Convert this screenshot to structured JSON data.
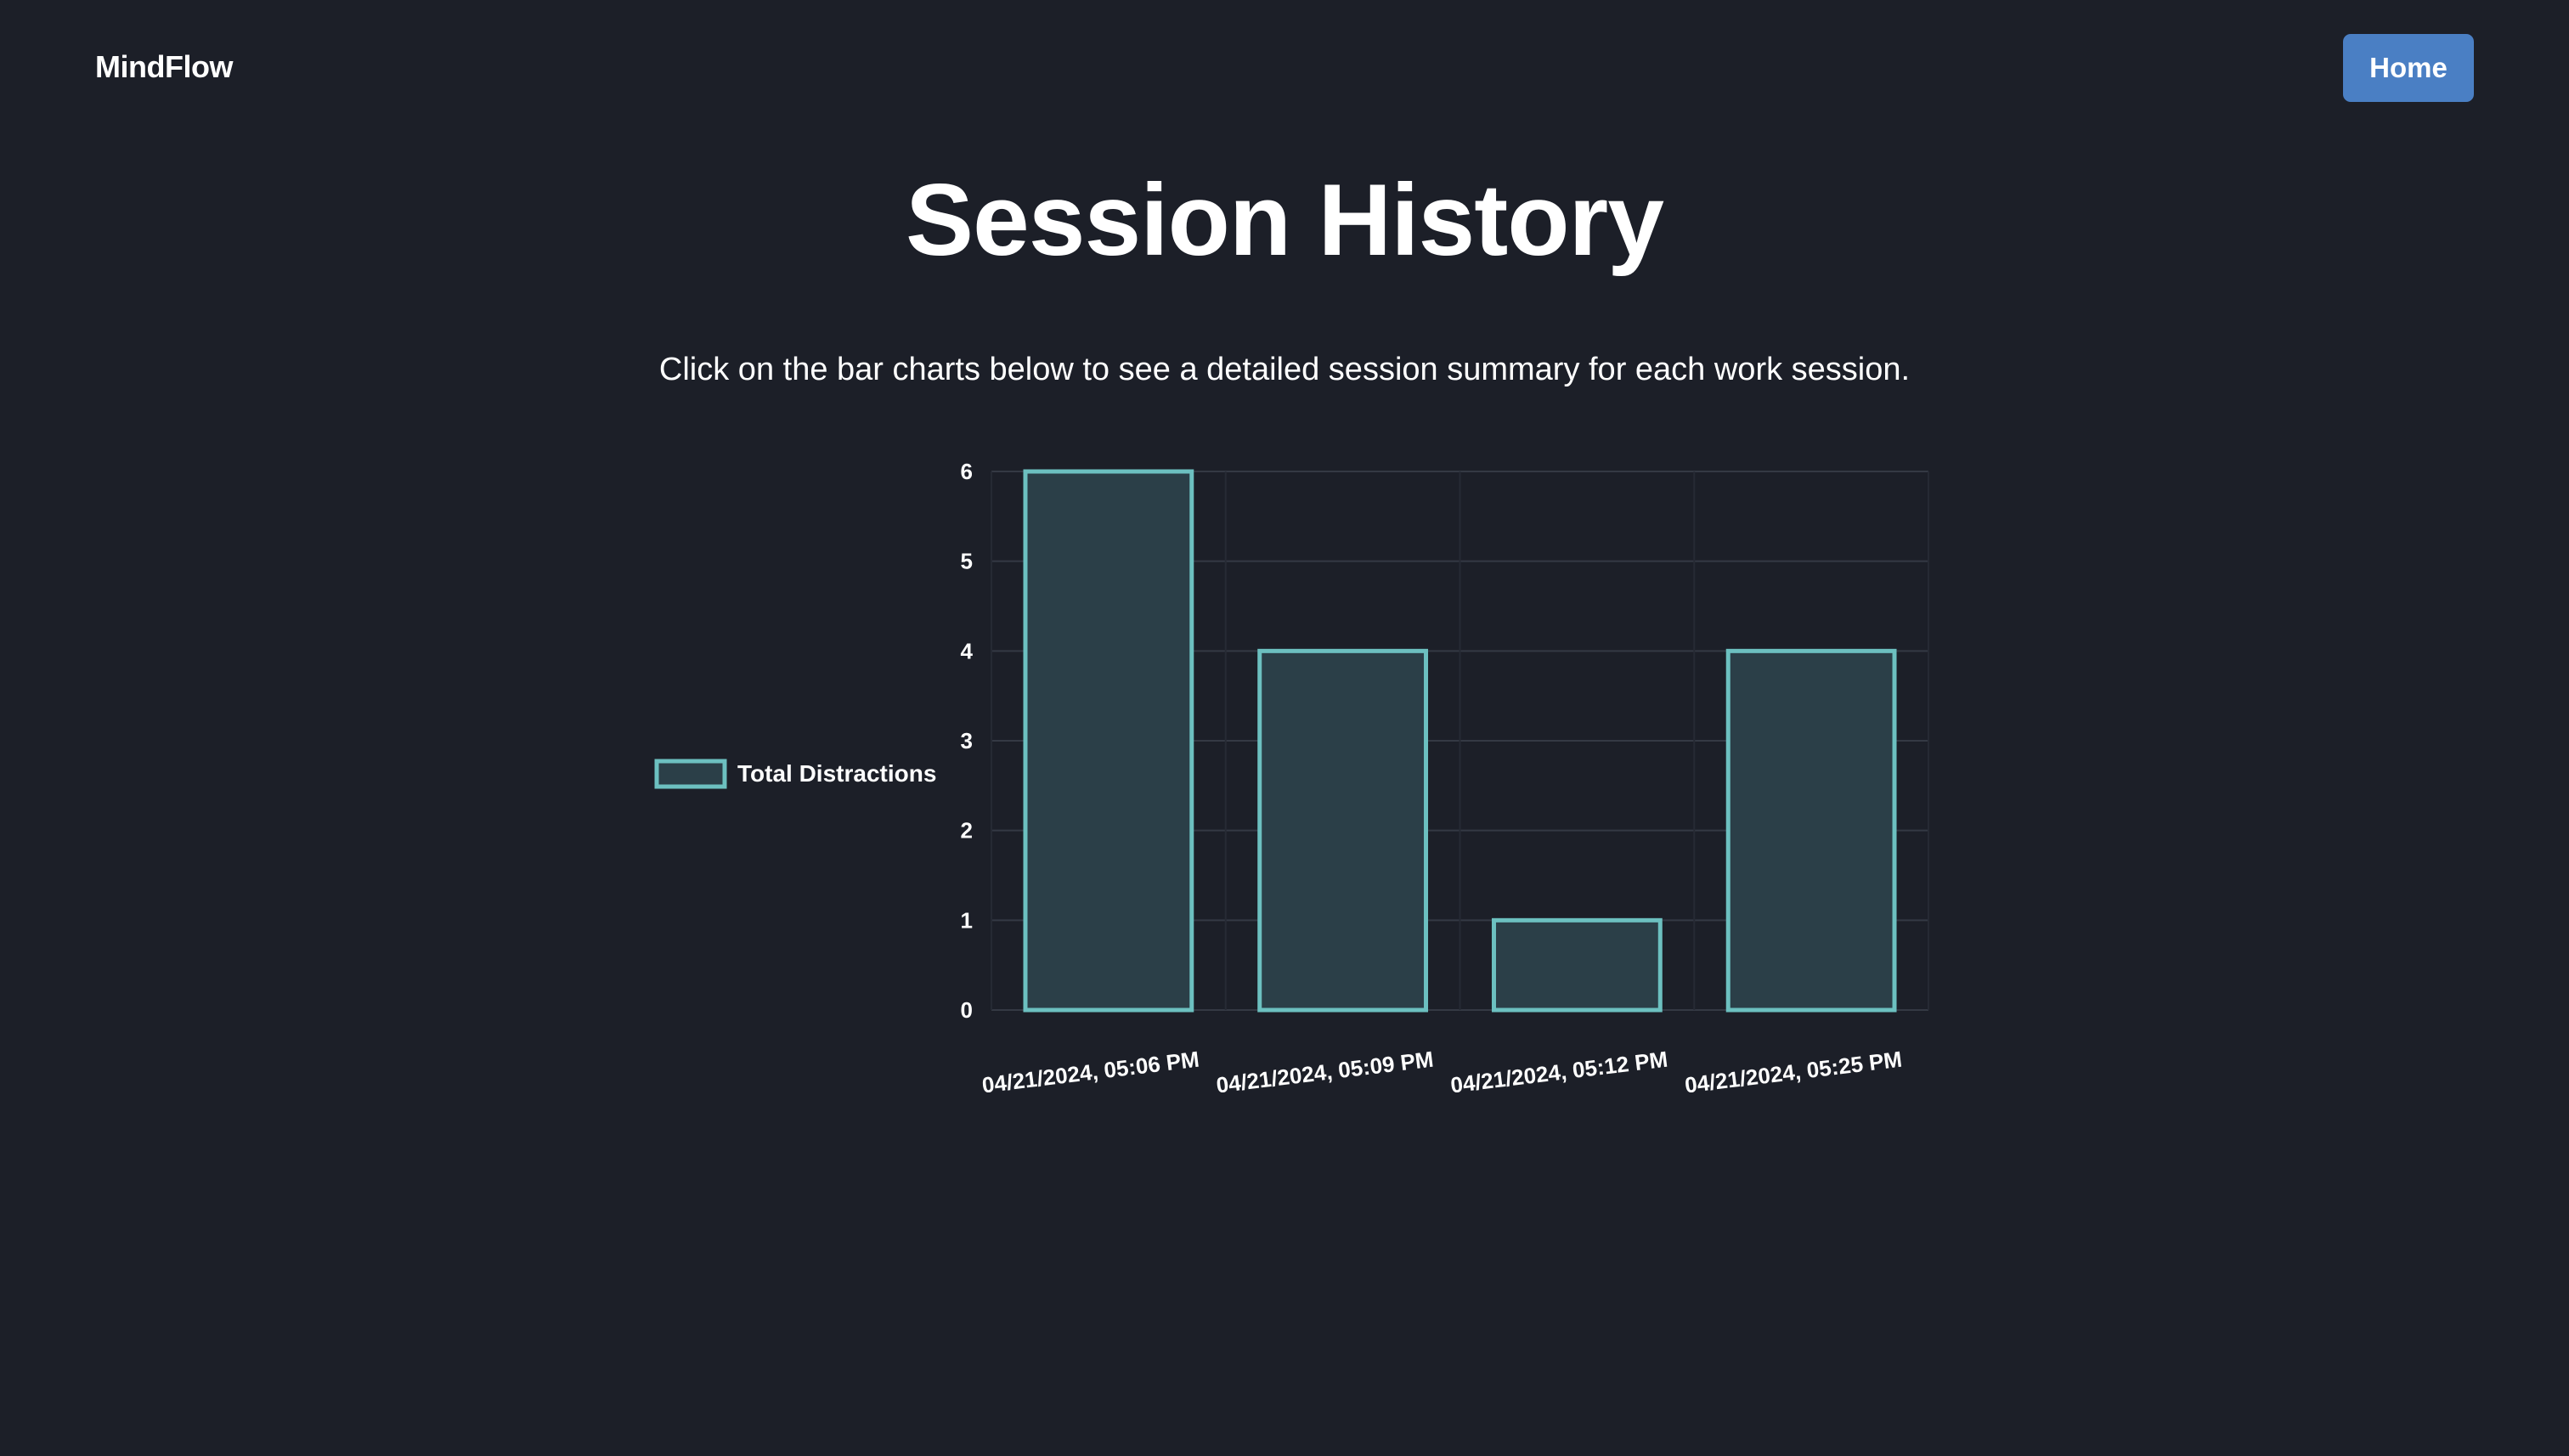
{
  "header": {
    "brand": "MindFlow",
    "home_label": "Home"
  },
  "main": {
    "title": "Session History",
    "subtitle": "Click on the bar charts below to see a detailed session summary for each work session."
  },
  "colors": {
    "background": "#1c1f28",
    "accent": "#4a7fc4",
    "bar_border": "#6cc0c0",
    "bar_fill": "#2b3f48",
    "grid": "#343944"
  },
  "chart_data": {
    "type": "bar",
    "categories": [
      "04/21/2024, 05:06 PM",
      "04/21/2024, 05:09 PM",
      "04/21/2024, 05:12 PM",
      "04/21/2024, 05:25 PM"
    ],
    "series": [
      {
        "name": "Total Distractions",
        "values": [
          6,
          4,
          1,
          4
        ]
      }
    ],
    "ylim": [
      0,
      6
    ],
    "yticks": [
      0,
      1,
      2,
      3,
      4,
      5,
      6
    ],
    "grid": true,
    "legend_position": "left",
    "xlabel": "",
    "ylabel": ""
  }
}
